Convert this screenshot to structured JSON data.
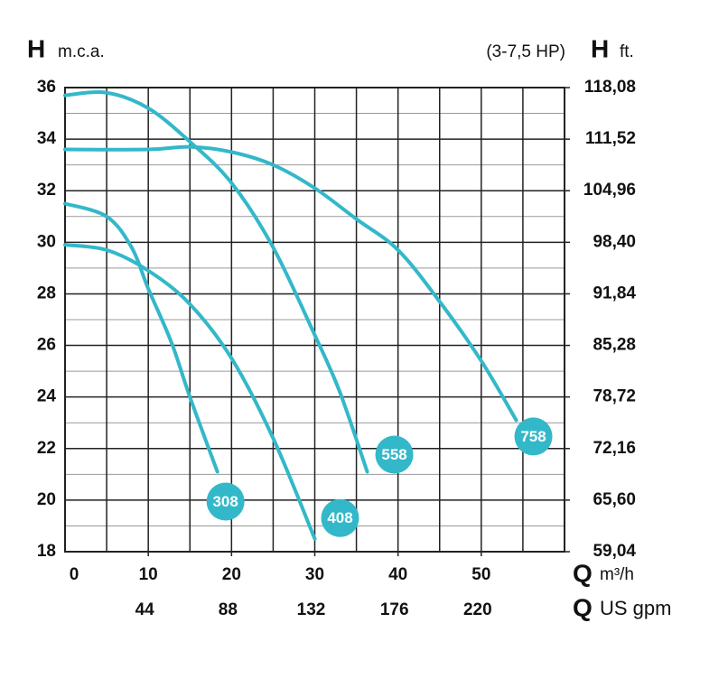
{
  "chart_data": {
    "type": "line",
    "y_symbol": "H",
    "y_unit": "m.c.a.",
    "subtitle": "(3-7,5 HP)",
    "y2_symbol": "H",
    "y2_unit": "ft.",
    "x_symbol": "Q",
    "x_unit": "m³/h",
    "x2_symbol": "Q",
    "x2_unit": "US gpm",
    "xlim": [
      0,
      60
    ],
    "xticks": [
      0,
      10,
      20,
      30,
      40,
      50
    ],
    "x_minor_ticks": [
      5,
      15,
      25,
      35,
      45,
      55,
      60
    ],
    "x2lim": [
      0,
      264
    ],
    "x2ticks": [
      44,
      88,
      132,
      176,
      220
    ],
    "ylim": [
      18,
      36
    ],
    "yticks": [
      18,
      20,
      22,
      24,
      26,
      28,
      30,
      32,
      34,
      36
    ],
    "y_minor_ticks": [
      19,
      21,
      23,
      25,
      27,
      29,
      31,
      33,
      35
    ],
    "y2lim": [
      59.04,
      118.08
    ],
    "y2ticks": [
      {
        "value": 59.04,
        "label": "59,04"
      },
      {
        "value": 65.6,
        "label": "65,60"
      },
      {
        "value": 72.16,
        "label": "72,16"
      },
      {
        "value": 78.72,
        "label": "78,72"
      },
      {
        "value": 85.28,
        "label": "85,28"
      },
      {
        "value": 91.84,
        "label": "91,84"
      },
      {
        "value": 98.4,
        "label": "98,40"
      },
      {
        "value": 104.96,
        "label": "104,96"
      },
      {
        "value": 111.52,
        "label": "111,52"
      },
      {
        "value": 118.08,
        "label": "118,08"
      }
    ],
    "grid": true,
    "series": [
      {
        "name": "308",
        "color": "#33b8c9",
        "x": [
          0,
          5,
          8,
          10,
          12.8,
          15,
          18.3
        ],
        "values": [
          31.5,
          31.0,
          29.8,
          28.2,
          26.1,
          24.0,
          21.1
        ]
      },
      {
        "name": "408",
        "color": "#33b8c9",
        "x": [
          0,
          5,
          10,
          15,
          20,
          25,
          30
        ],
        "values": [
          29.9,
          29.7,
          28.9,
          27.6,
          25.5,
          22.4,
          18.5
        ]
      },
      {
        "name": "558",
        "color": "#33b8c9",
        "x": [
          0,
          5,
          10,
          15,
          20,
          25,
          30,
          33,
          36.3
        ],
        "values": [
          35.7,
          35.8,
          35.2,
          33.9,
          32.3,
          29.8,
          26.4,
          24.2,
          21.1
        ]
      },
      {
        "name": "758",
        "color": "#33b8c9",
        "x": [
          0,
          10,
          15,
          20,
          25,
          30,
          35,
          40,
          45,
          50,
          54.2
        ],
        "values": [
          33.6,
          33.6,
          33.7,
          33.5,
          33.0,
          32.1,
          30.9,
          29.7,
          27.7,
          25.4,
          23.1
        ]
      }
    ]
  }
}
